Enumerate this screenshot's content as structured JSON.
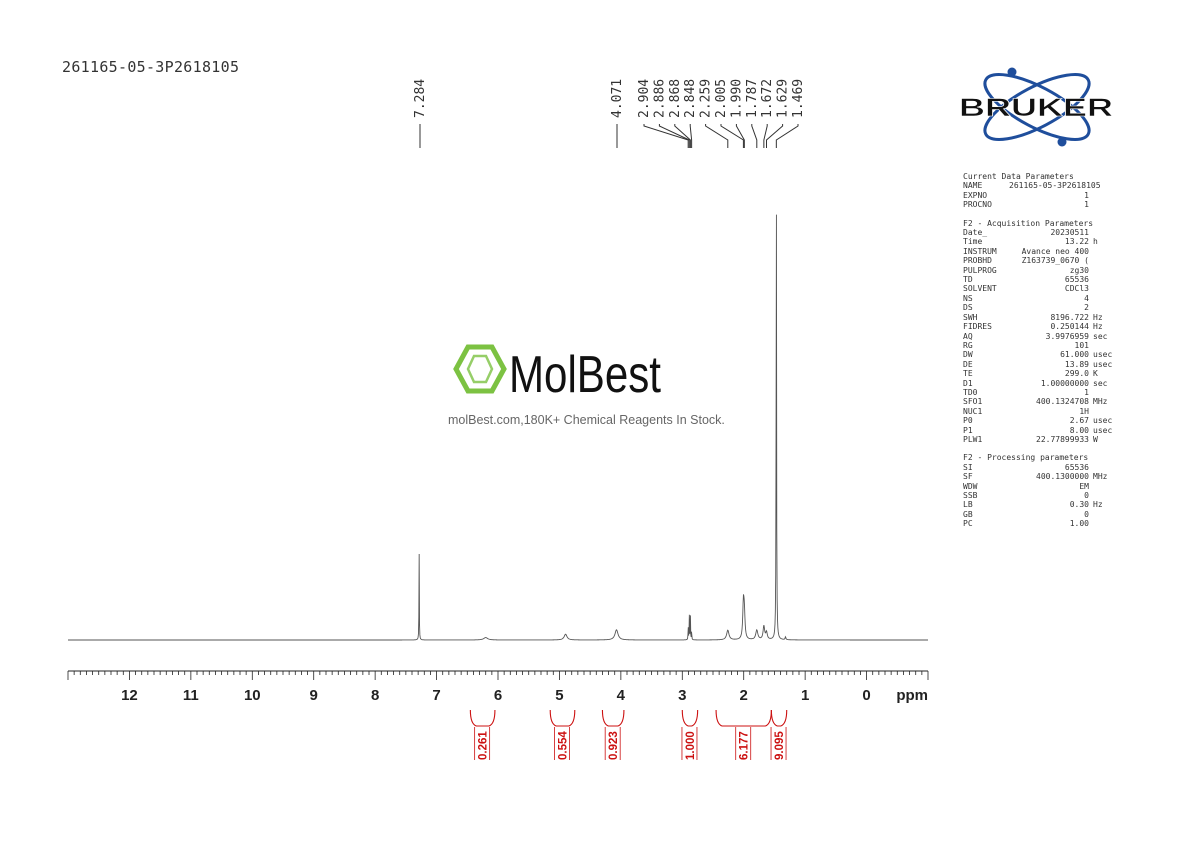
{
  "sample_id": "261165-05-3P2618105",
  "watermark": {
    "brand": "MolBest",
    "tagline": "molBest.com,180K+ Chemical Reagents In Stock."
  },
  "logo": {
    "text": "BRUKER"
  },
  "colors": {
    "spectrum": "#555555",
    "integral": "#cc1111",
    "watermark": "#7cc242",
    "logo_blue": "#1f4e9c"
  },
  "parameters": [
    {
      "title": "Current Data Parameters",
      "rows": [
        {
          "key": "NAME",
          "value": "261165-05-3P2618105",
          "unit": ""
        },
        {
          "key": "EXPNO",
          "value": "1",
          "unit": ""
        },
        {
          "key": "PROCNO",
          "value": "1",
          "unit": ""
        }
      ]
    },
    {
      "title": "F2 - Acquisition Parameters",
      "rows": [
        {
          "key": "Date_",
          "value": "20230511",
          "unit": ""
        },
        {
          "key": "Time",
          "value": "13.22",
          "unit": "h"
        },
        {
          "key": "INSTRUM",
          "value": "Avance neo 400",
          "unit": ""
        },
        {
          "key": "PROBHD",
          "value": "Z163739_0670 (",
          "unit": ""
        },
        {
          "key": "PULPROG",
          "value": "zg30",
          "unit": ""
        },
        {
          "key": "TD",
          "value": "65536",
          "unit": ""
        },
        {
          "key": "SOLVENT",
          "value": "CDCl3",
          "unit": ""
        },
        {
          "key": "NS",
          "value": "4",
          "unit": ""
        },
        {
          "key": "DS",
          "value": "2",
          "unit": ""
        },
        {
          "key": "SWH",
          "value": "8196.722",
          "unit": "Hz"
        },
        {
          "key": "FIDRES",
          "value": "0.250144",
          "unit": "Hz"
        },
        {
          "key": "AQ",
          "value": "3.9976959",
          "unit": "sec"
        },
        {
          "key": "RG",
          "value": "101",
          "unit": ""
        },
        {
          "key": "DW",
          "value": "61.000",
          "unit": "usec"
        },
        {
          "key": "DE",
          "value": "13.89",
          "unit": "usec"
        },
        {
          "key": "TE",
          "value": "299.0",
          "unit": "K"
        },
        {
          "key": "D1",
          "value": "1.00000000",
          "unit": "sec"
        },
        {
          "key": "TD0",
          "value": "1",
          "unit": ""
        },
        {
          "key": "SFO1",
          "value": "400.1324708",
          "unit": "MHz"
        },
        {
          "key": "NUC1",
          "value": "1H",
          "unit": ""
        },
        {
          "key": "P0",
          "value": "2.67",
          "unit": "usec"
        },
        {
          "key": "P1",
          "value": "8.00",
          "unit": "usec"
        },
        {
          "key": "PLW1",
          "value": "22.77899933",
          "unit": "W"
        }
      ]
    },
    {
      "title": "F2 - Processing parameters",
      "rows": [
        {
          "key": "SI",
          "value": "65536",
          "unit": ""
        },
        {
          "key": "SF",
          "value": "400.1300000",
          "unit": "MHz"
        },
        {
          "key": "WDW",
          "value": "EM",
          "unit": ""
        },
        {
          "key": "SSB",
          "value": "0",
          "unit": ""
        },
        {
          "key": "LB",
          "value": "0.30",
          "unit": "Hz"
        },
        {
          "key": "GB",
          "value": "0",
          "unit": ""
        },
        {
          "key": "PC",
          "value": "1.00",
          "unit": ""
        }
      ]
    }
  ],
  "chart_data": {
    "type": "line",
    "xlabel": "ppm",
    "x_reversed": true,
    "xlim": [
      13.0,
      -1.0
    ],
    "x_ticks": [
      12,
      11,
      10,
      9,
      8,
      7,
      6,
      5,
      4,
      3,
      2,
      1,
      0
    ],
    "x_tick_labels": [
      "12",
      "11",
      "10",
      "9",
      "8",
      "7",
      "6",
      "5",
      "4",
      "3",
      "2",
      "1",
      "0"
    ],
    "y_relative_intensity": true,
    "peak_labels": [
      "7.284",
      "4.071",
      "2.904",
      "2.886",
      "2.868",
      "2.848",
      "2.259",
      "2.005",
      "1.990",
      "1.787",
      "1.672",
      "1.629",
      "1.469"
    ],
    "peaks": [
      {
        "ppm": 7.284,
        "height": 0.186,
        "width": 0.006
      },
      {
        "ppm": 6.2,
        "height": 0.005,
        "width": 0.08
      },
      {
        "ppm": 4.9,
        "height": 0.012,
        "width": 0.055
      },
      {
        "ppm": 4.071,
        "height": 0.021,
        "width": 0.06
      },
      {
        "ppm": 2.904,
        "height": 0.03,
        "width": 0.006
      },
      {
        "ppm": 2.886,
        "height": 0.055,
        "width": 0.006
      },
      {
        "ppm": 2.868,
        "height": 0.05,
        "width": 0.006
      },
      {
        "ppm": 2.848,
        "height": 0.022,
        "width": 0.006
      },
      {
        "ppm": 2.259,
        "height": 0.02,
        "width": 0.045
      },
      {
        "ppm": 2.005,
        "height": 0.072,
        "width": 0.025
      },
      {
        "ppm": 1.99,
        "height": 0.05,
        "width": 0.025
      },
      {
        "ppm": 1.787,
        "height": 0.02,
        "width": 0.04
      },
      {
        "ppm": 1.672,
        "height": 0.028,
        "width": 0.03
      },
      {
        "ppm": 1.629,
        "height": 0.015,
        "width": 0.03
      },
      {
        "ppm": 1.469,
        "height": 1.0,
        "width": 0.008
      },
      {
        "ppm": 1.32,
        "height": 0.006,
        "width": 0.015
      }
    ],
    "integrals": [
      {
        "from": 6.45,
        "to": 6.05,
        "value": "0.261"
      },
      {
        "from": 5.15,
        "to": 4.75,
        "value": "0.554"
      },
      {
        "from": 4.3,
        "to": 3.95,
        "value": "0.923"
      },
      {
        "from": 3.0,
        "to": 2.75,
        "value": "1.000"
      },
      {
        "from": 2.45,
        "to": 1.55,
        "value": "6.177"
      },
      {
        "from": 1.55,
        "to": 1.3,
        "value": "9.095"
      }
    ]
  }
}
